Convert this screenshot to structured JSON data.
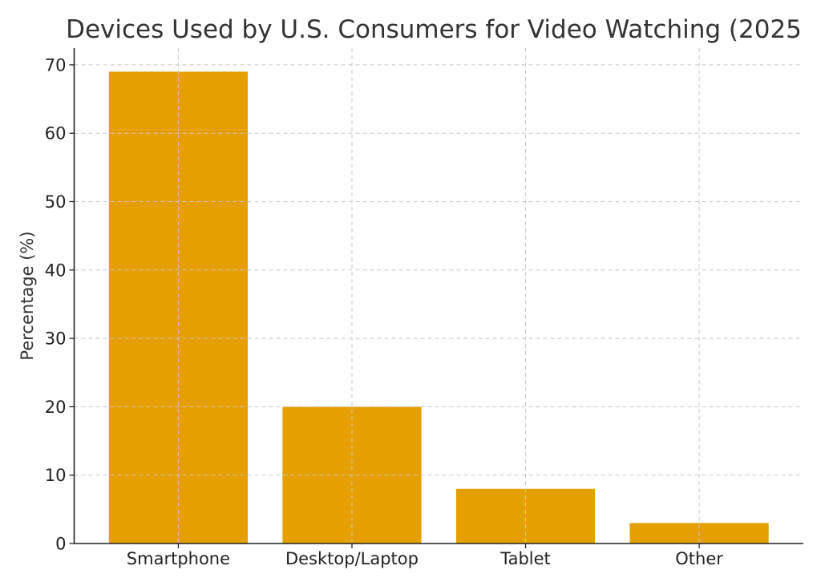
{
  "chart_data": {
    "type": "bar",
    "title": "Devices Used by U.S. Consumers for Video Watching (2025",
    "xlabel": "",
    "ylabel": "Percentage (%)",
    "categories": [
      "Smartphone",
      "Desktop/Laptop",
      "Tablet",
      "Other"
    ],
    "values": [
      69,
      20,
      8,
      3
    ],
    "ylim": [
      0,
      72.45
    ],
    "yticks": [
      0,
      10,
      20,
      30,
      40,
      50,
      60,
      70
    ],
    "grid": true,
    "bar_color": "#E69F00",
    "legend": null
  }
}
